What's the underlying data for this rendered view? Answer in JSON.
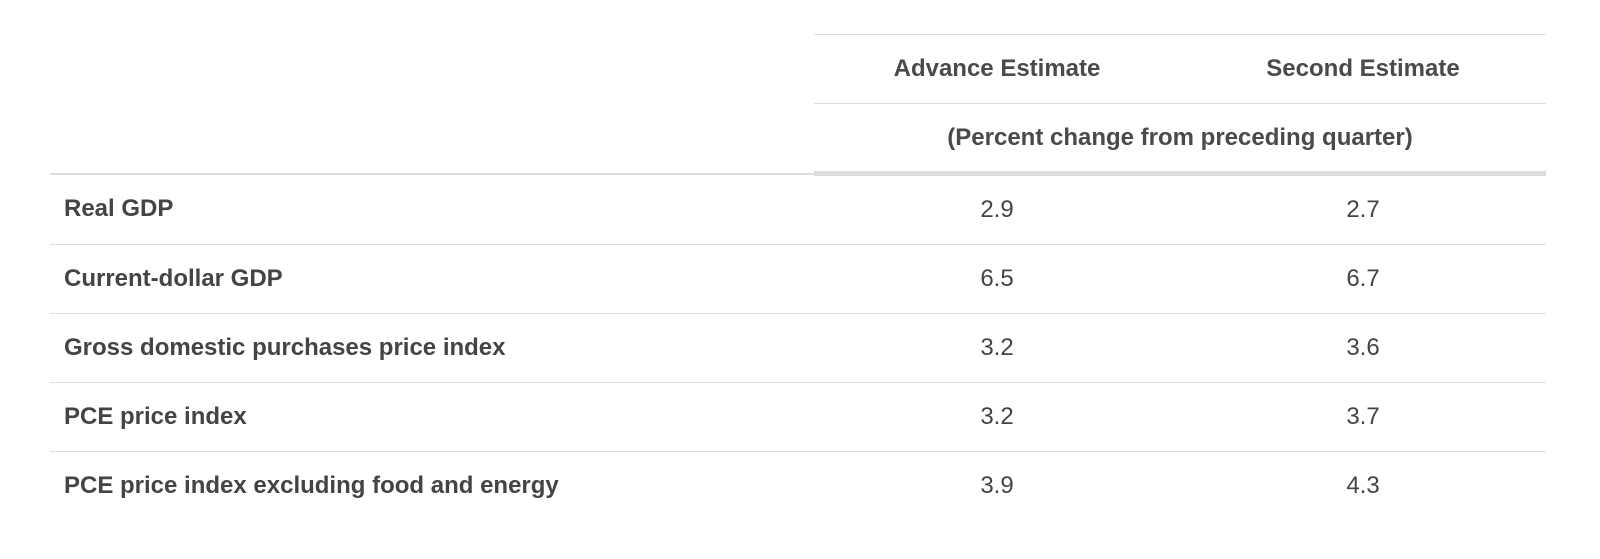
{
  "table": {
    "columns": [
      "Advance Estimate",
      "Second Estimate"
    ],
    "units_note": "(Percent change from preceding quarter)",
    "rows": [
      {
        "label": "Real GDP",
        "advance": "2.9",
        "second": "2.7"
      },
      {
        "label": "Current-dollar GDP",
        "advance": "6.5",
        "second": "6.7"
      },
      {
        "label": "Gross domestic purchases price index",
        "advance": "3.2",
        "second": "3.6"
      },
      {
        "label": "PCE price index",
        "advance": "3.2",
        "second": "3.7"
      },
      {
        "label": "PCE price index excluding food and energy",
        "advance": "3.9",
        "second": "4.3"
      }
    ]
  },
  "colors": {
    "text": "#444444",
    "rule": "#dddddd",
    "background": "#ffffff"
  }
}
